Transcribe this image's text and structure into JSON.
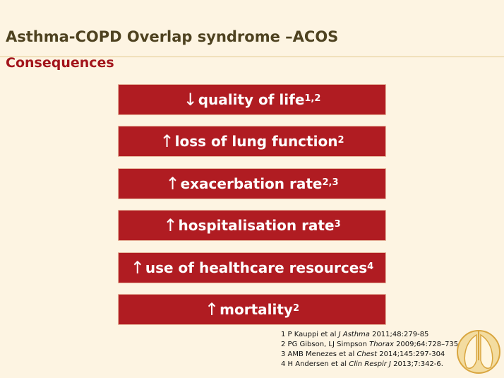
{
  "header": {
    "title": "Asthma-COPD Overlap syndrome –ACOS",
    "subtitle": "Consequences"
  },
  "items": [
    {
      "arrow": "↓",
      "text": "quality of life",
      "sup": "1,2"
    },
    {
      "arrow": "↑",
      "text": "loss of lung function",
      "sup": "2"
    },
    {
      "arrow": "↑",
      "text": "exacerbation rate",
      "sup": "2,3"
    },
    {
      "arrow": "↑",
      "text": "hospitalisation rate",
      "sup": "3"
    },
    {
      "arrow": "↑",
      "text": "use of healthcare resources",
      "sup": "4"
    },
    {
      "arrow": "↑",
      "text": "mortality",
      "sup": "2"
    }
  ],
  "references": [
    {
      "pre": "1 P Kauppi et al ",
      "journal": "J Asthma",
      "post": " 2011;48:279-85"
    },
    {
      "pre": "2 PG Gibson, LJ Simpson ",
      "journal": "Thorax",
      "post": " 2009;64:728–735"
    },
    {
      "pre": "3 AMB Menezes et al ",
      "journal": "Chest",
      "post": " 2014;145:297-304"
    },
    {
      "pre": "4 H Andersen et al ",
      "journal": "Clin Respir J",
      "post": " 2013;7:342-6."
    }
  ]
}
